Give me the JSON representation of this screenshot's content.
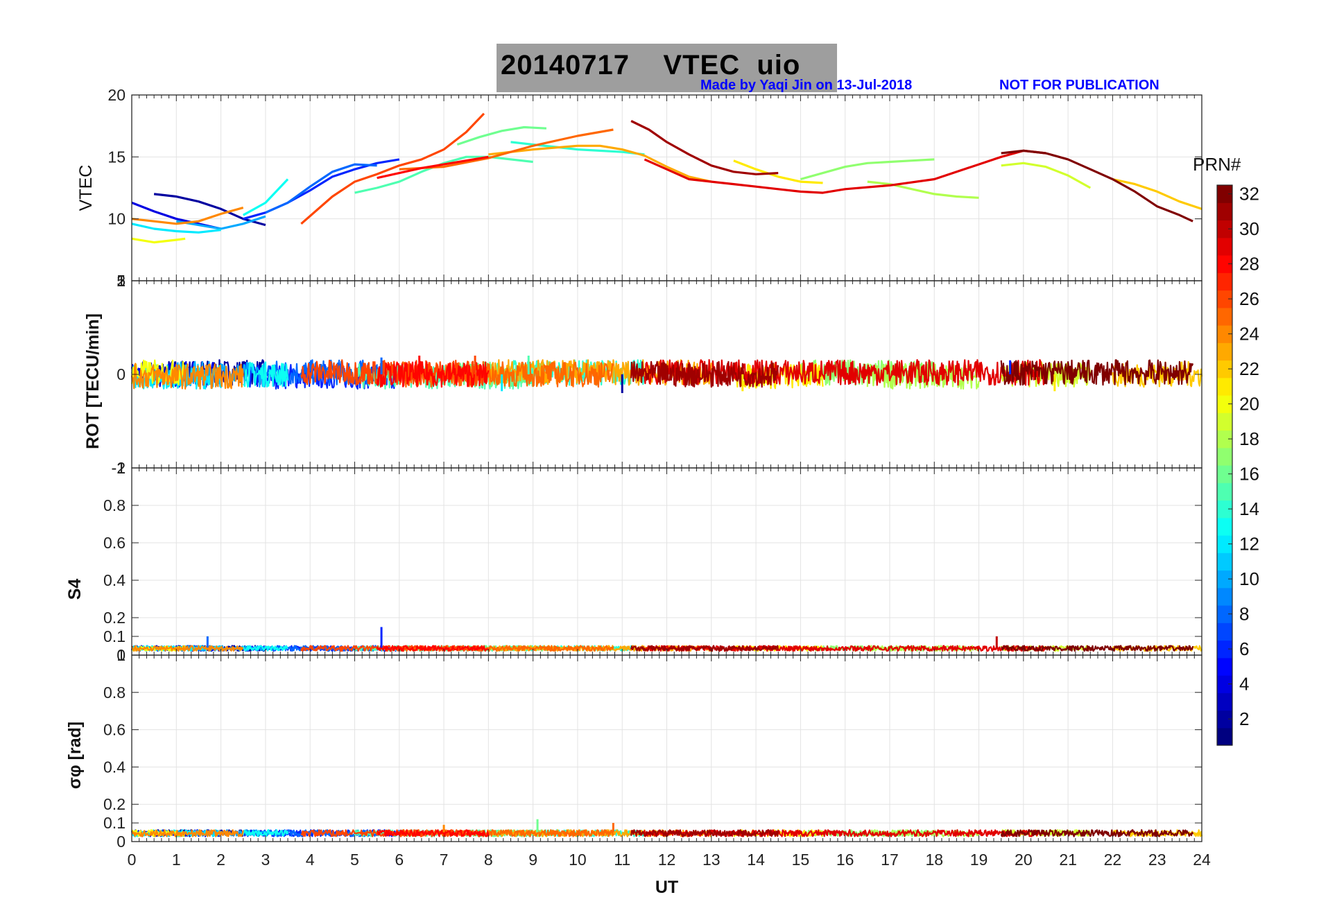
{
  "title": {
    "date": "20140717",
    "product": "VTEC",
    "station": "uio",
    "credit": "Made by Yaqi Jin on 13-Jul-2018",
    "notice": "NOT FOR PUBLICATION"
  },
  "chart_data": [
    {
      "type": "line",
      "panel": "vtec",
      "ylabel": "VTEC",
      "xlabel": "",
      "xlim": [
        0,
        24
      ],
      "ylim": [
        5,
        20
      ],
      "yticks": [
        10,
        15,
        20
      ],
      "ytick_labels": [
        "10",
        "15",
        "20"
      ],
      "extra_tick_label": "5",
      "grid": true,
      "series": [
        {
          "prn": 2,
          "x": [
            0.5,
            1.0,
            1.5,
            2.0,
            2.5,
            3.0
          ],
          "y": [
            12.0,
            11.8,
            11.4,
            10.8,
            10.0,
            9.5
          ]
        },
        {
          "prn": 4,
          "x": [
            0.0,
            0.5,
            1.0,
            1.5,
            2.0
          ],
          "y": [
            11.3,
            10.6,
            10.0,
            9.6,
            9.2
          ]
        },
        {
          "prn": 6,
          "x": [
            2.5,
            3.0,
            3.5,
            4.0,
            4.5,
            5.0,
            5.5,
            6.0
          ],
          "y": [
            10.0,
            10.5,
            11.3,
            12.3,
            13.4,
            14.0,
            14.5,
            14.8
          ]
        },
        {
          "prn": 8,
          "x": [
            3.0,
            3.5,
            4.0,
            4.5,
            5.0,
            5.5
          ],
          "y": [
            10.5,
            11.3,
            12.6,
            13.8,
            14.4,
            14.3
          ]
        },
        {
          "prn": 10,
          "x": [
            1.0,
            1.5,
            2.0,
            2.5,
            3.0
          ],
          "y": [
            9.8,
            9.5,
            9.2,
            9.6,
            10.2
          ]
        },
        {
          "prn": 12,
          "x": [
            0.0,
            0.5,
            1.0,
            1.5,
            2.0
          ],
          "y": [
            9.6,
            9.2,
            9.0,
            8.9,
            9.1
          ]
        },
        {
          "prn": 13,
          "x": [
            2.5,
            3.0,
            3.5
          ],
          "y": [
            10.3,
            11.3,
            13.2
          ]
        },
        {
          "prn": 14,
          "x": [
            8.5,
            9.0,
            9.5,
            10.0,
            10.5,
            11.0,
            11.5
          ],
          "y": [
            16.2,
            16.0,
            15.8,
            15.6,
            15.5,
            15.4,
            15.2
          ]
        },
        {
          "prn": 15,
          "x": [
            5.0,
            5.5,
            6.0,
            6.5,
            7.0,
            7.5,
            8.0,
            8.5,
            9.0
          ],
          "y": [
            12.1,
            12.5,
            13.0,
            13.8,
            14.5,
            15.0,
            15.0,
            14.8,
            14.6
          ]
        },
        {
          "prn": 16,
          "x": [
            7.3,
            7.8,
            8.3,
            8.8,
            9.3
          ],
          "y": [
            16.0,
            16.6,
            17.1,
            17.4,
            17.3
          ]
        },
        {
          "prn": 17,
          "x": [
            15.0,
            15.5,
            16.0,
            16.5,
            17.0,
            17.5,
            18.0
          ],
          "y": [
            13.2,
            13.7,
            14.2,
            14.5,
            14.6,
            14.7,
            14.8
          ]
        },
        {
          "prn": 18,
          "x": [
            16.5,
            17.0,
            17.5,
            18.0,
            18.5,
            19.0
          ],
          "y": [
            13.0,
            12.8,
            12.4,
            12.0,
            11.8,
            11.7
          ]
        },
        {
          "prn": 19,
          "x": [
            19.5,
            20.0,
            20.5,
            21.0,
            21.5
          ],
          "y": [
            14.3,
            14.5,
            14.2,
            13.5,
            12.5
          ]
        },
        {
          "prn": 20,
          "x": [
            0.0,
            0.5,
            1.0,
            1.2
          ],
          "y": [
            8.4,
            8.1,
            8.3,
            8.4
          ]
        },
        {
          "prn": 21,
          "x": [
            13.5,
            14.0,
            14.5,
            15.0,
            15.5
          ],
          "y": [
            14.7,
            14.0,
            13.4,
            13.0,
            12.9
          ]
        },
        {
          "prn": 22,
          "x": [
            22.0,
            22.5,
            23.0,
            23.5,
            24.0
          ],
          "y": [
            13.2,
            12.8,
            12.2,
            11.4,
            10.8
          ]
        },
        {
          "prn": 23,
          "x": [
            8.0,
            9.0,
            10.0,
            10.5,
            11.0,
            11.5,
            12.0,
            12.5,
            13.0
          ],
          "y": [
            15.2,
            15.6,
            15.9,
            15.9,
            15.6,
            15.1,
            14.2,
            13.4,
            13.0
          ]
        },
        {
          "prn": 24,
          "x": [
            0.0,
            0.5,
            1.0,
            1.5,
            2.0,
            2.5
          ],
          "y": [
            10.0,
            9.8,
            9.6,
            9.8,
            10.4,
            10.9
          ]
        },
        {
          "prn": 25,
          "x": [
            6.0,
            7.0,
            8.0,
            9.0,
            10.0,
            10.8
          ],
          "y": [
            14.0,
            14.2,
            14.9,
            15.9,
            16.7,
            17.2
          ]
        },
        {
          "prn": 26,
          "x": [
            3.8,
            4.5,
            5.0,
            5.5,
            6.0,
            6.5,
            7.0,
            7.5,
            7.9
          ],
          "y": [
            9.6,
            11.8,
            13.0,
            13.6,
            14.3,
            14.8,
            15.6,
            17.0,
            18.5
          ]
        },
        {
          "prn": 28,
          "x": [
            5.5,
            6.0,
            6.5,
            7.0,
            7.5,
            8.0
          ],
          "y": [
            13.3,
            13.7,
            14.1,
            14.4,
            14.7,
            15.0
          ]
        },
        {
          "prn": 29,
          "x": [
            11.5,
            12.0,
            12.5,
            13.0,
            13.5,
            14.0,
            14.5,
            15.0,
            15.5,
            16.0,
            17.0,
            18.0,
            19.0,
            19.5,
            20.0,
            20.5
          ],
          "y": [
            14.8,
            14.0,
            13.2,
            13.0,
            12.8,
            12.6,
            12.4,
            12.2,
            12.1,
            12.4,
            12.7,
            13.2,
            14.4,
            15.0,
            15.5,
            15.3
          ]
        },
        {
          "prn": 31,
          "x": [
            11.2,
            11.6,
            12.0,
            12.5,
            13.0,
            13.5,
            14.0,
            14.5
          ],
          "y": [
            17.9,
            17.2,
            16.2,
            15.2,
            14.3,
            13.8,
            13.6,
            13.7
          ]
        },
        {
          "prn": 32,
          "x": [
            19.5,
            20.0,
            20.5,
            21.0,
            21.5,
            22.0,
            22.5,
            23.0,
            23.5,
            23.8
          ],
          "y": [
            15.3,
            15.5,
            15.3,
            14.8,
            14.0,
            13.2,
            12.2,
            11.0,
            10.3,
            9.8
          ]
        }
      ]
    },
    {
      "type": "line",
      "panel": "rot",
      "ylabel": "ROT [TECU/min]",
      "xlim": [
        0,
        24
      ],
      "ylim": [
        -1,
        1
      ],
      "yticks": [
        -1,
        0,
        1
      ],
      "ytick_labels": [
        "-1",
        "0",
        "1"
      ],
      "extra_tick_labels": [
        "2",
        "-2"
      ],
      "grid": true,
      "typical_band": [
        -0.15,
        0.15
      ],
      "spikes": [
        {
          "x": 5.6,
          "y": 0.18,
          "prn": 8
        },
        {
          "x": 6.45,
          "y": 0.2,
          "prn": 28
        },
        {
          "x": 7.7,
          "y": 0.2,
          "prn": 26
        },
        {
          "x": 8.9,
          "y": 0.2,
          "prn": 15
        },
        {
          "x": 8.3,
          "y": -0.18,
          "prn": 12
        },
        {
          "x": 11.0,
          "y": -0.2,
          "prn": 2
        },
        {
          "x": 13.7,
          "y": -0.18,
          "prn": 21
        },
        {
          "x": 19.7,
          "y": 0.15,
          "prn": 6
        },
        {
          "x": 20.7,
          "y": -0.18,
          "prn": 21
        }
      ]
    },
    {
      "type": "line",
      "panel": "s4",
      "ylabel": "S4",
      "xlim": [
        0,
        24
      ],
      "ylim": [
        0,
        1
      ],
      "yticks": [
        0,
        0.1,
        0.2,
        0.4,
        0.6,
        0.8,
        1
      ],
      "ytick_labels": [
        "0",
        "0.1",
        "0.2",
        "0.4",
        "0.6",
        "0.8",
        "1"
      ],
      "grid": true,
      "typical_level": 0.04,
      "spikes": [
        {
          "x": 1.7,
          "y": 0.1,
          "prn": 8
        },
        {
          "x": 5.6,
          "y": 0.15,
          "prn": 6
        },
        {
          "x": 19.4,
          "y": 0.1,
          "prn": 30
        }
      ]
    },
    {
      "type": "line",
      "panel": "sigma_phi",
      "ylabel": "σφ [rad]",
      "xlabel": "UT",
      "xlim": [
        0,
        24
      ],
      "ylim": [
        0,
        1
      ],
      "xticks": [
        0,
        1,
        2,
        3,
        4,
        5,
        6,
        7,
        8,
        9,
        10,
        11,
        12,
        13,
        14,
        15,
        16,
        17,
        18,
        19,
        20,
        21,
        22,
        23,
        24
      ],
      "yticks": [
        0,
        0.1,
        0.2,
        0.4,
        0.6,
        0.8,
        1
      ],
      "ytick_labels": [
        "0",
        "0.1",
        "0.2",
        "0.4",
        "0.6",
        "0.8",
        "1"
      ],
      "grid": true,
      "typical_level": 0.05,
      "spikes": [
        {
          "x": 9.1,
          "y": 0.12,
          "prn": 16
        },
        {
          "x": 7.0,
          "y": 0.09,
          "prn": 24
        },
        {
          "x": 10.8,
          "y": 0.1,
          "prn": 25
        }
      ]
    }
  ],
  "colorbar": {
    "label": "PRN#",
    "min": 1,
    "max": 32,
    "ticks": [
      2,
      4,
      6,
      8,
      10,
      12,
      14,
      16,
      18,
      20,
      22,
      24,
      26,
      28,
      30,
      32
    ],
    "colormap": "jet"
  }
}
